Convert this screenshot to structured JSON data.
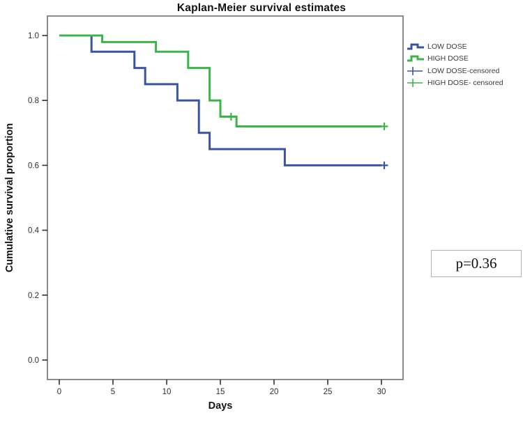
{
  "chart_data": {
    "type": "line",
    "subtype": "kaplan-meier-step",
    "title": "Kaplan-Meier survival estimates",
    "xlabel": "Days",
    "ylabel": "Cumulative survival proportion",
    "xlim": [
      0,
      30
    ],
    "ylim": [
      0.0,
      1.0
    ],
    "grid": false,
    "legend_position": "right-outside",
    "x_tick_values": [
      0,
      5,
      10,
      15,
      20,
      25,
      30
    ],
    "x_tick_labels": [
      "0",
      "5",
      "10",
      "15",
      "20",
      "25",
      "30"
    ],
    "y_tick_values": [
      0.0,
      0.2,
      0.4,
      0.6,
      0.8,
      1.0
    ],
    "y_tick_labels": [
      "0.0",
      "0.2",
      "0.4",
      "0.6",
      "0.8",
      "1.0"
    ],
    "series": [
      {
        "name": "LOW DOSE",
        "color": "#3a53a5",
        "start": [
          0,
          1.0
        ],
        "drops": [
          [
            3,
            0.95
          ],
          [
            7,
            0.9
          ],
          [
            8,
            0.85
          ],
          [
            11,
            0.8
          ],
          [
            13,
            0.7
          ],
          [
            14,
            0.65
          ],
          [
            21,
            0.6
          ]
        ],
        "end_x": 30,
        "censored": [
          [
            30,
            0.6
          ]
        ]
      },
      {
        "name": "HIGH DOSE",
        "color": "#3bb44a",
        "start": [
          0,
          1.0
        ],
        "drops": [
          [
            4,
            0.98
          ],
          [
            9,
            0.95
          ],
          [
            12,
            0.9
          ],
          [
            14,
            0.8
          ],
          [
            15,
            0.75
          ],
          [
            16.5,
            0.72
          ]
        ],
        "end_x": 30,
        "censored": [
          [
            16,
            0.75
          ],
          [
            30,
            0.72
          ]
        ]
      }
    ],
    "legend": {
      "items": [
        {
          "label": "LOW DOSE",
          "swatch": "step",
          "series": 0
        },
        {
          "label": "HIGH DOSE",
          "swatch": "step",
          "series": 1
        },
        {
          "label": "LOW DOSE-censored",
          "swatch": "plus",
          "series": 0
        },
        {
          "label": "HIGH DOSE- censored",
          "swatch": "plus",
          "series": 1
        }
      ]
    }
  },
  "annotation": {
    "p_text": "p=0.36"
  }
}
